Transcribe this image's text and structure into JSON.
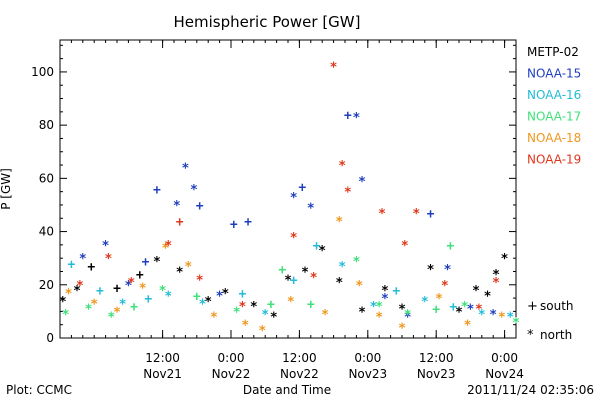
{
  "chart_data": {
    "type": "scatter",
    "title": "Hemispheric Power [GW]",
    "xlabel": "Date and Time",
    "ylabel": "P [GW]",
    "footer_left": "Plot: CCMC",
    "footer_right": "2011/11/24 02:35:06",
    "xlim": [
      "2011-11-20 18:00",
      "2011-11-24 02:00"
    ],
    "ylim": [
      0,
      112
    ],
    "y_ticks": [
      0,
      20,
      40,
      60,
      80,
      100
    ],
    "y_tick_labels": [
      "0",
      "20",
      "40",
      "60",
      "80",
      "100"
    ],
    "x_ticks": [
      "2011-11-21 12:00",
      "2011-11-22 00:00",
      "2011-11-22 12:00",
      "2011-11-23 00:00",
      "2011-11-23 12:00",
      "2011-11-24 00:00"
    ],
    "x_tick_labels": [
      {
        "time": "12:00",
        "date": "Nov21"
      },
      {
        "time": "0:00",
        "date": "Nov22"
      },
      {
        "time": "12:00",
        "date": "Nov22"
      },
      {
        "time": "0:00",
        "date": "Nov23"
      },
      {
        "time": "12:00",
        "date": "Nov23"
      },
      {
        "time": "0:00",
        "date": "Nov24"
      }
    ],
    "legend_position": "right",
    "marker_key": [
      {
        "symbol": "+",
        "label": "south"
      },
      {
        "symbol": "*",
        "label": "north"
      }
    ],
    "series": [
      {
        "name": "METP-02",
        "color": "#000000",
        "points": [
          {
            "x": "2011-11-20 18:30",
            "y": 14,
            "m": "*"
          },
          {
            "x": "2011-11-20 21:00",
            "y": 18,
            "m": "*"
          },
          {
            "x": "2011-11-20 23:30",
            "y": 27,
            "m": "+"
          },
          {
            "x": "2011-11-21 04:00",
            "y": 19,
            "m": "+"
          },
          {
            "x": "2011-11-21 08:00",
            "y": 24,
            "m": "+"
          },
          {
            "x": "2011-11-21 11:00",
            "y": 29,
            "m": "*"
          },
          {
            "x": "2011-11-21 15:00",
            "y": 25,
            "m": "*"
          },
          {
            "x": "2011-11-21 20:00",
            "y": 14,
            "m": "*"
          },
          {
            "x": "2011-11-21 23:00",
            "y": 17,
            "m": "*"
          },
          {
            "x": "2011-11-22 04:00",
            "y": 12,
            "m": "*"
          },
          {
            "x": "2011-11-22 07:30",
            "y": 8,
            "m": "*"
          },
          {
            "x": "2011-11-22 10:00",
            "y": 22,
            "m": "*"
          },
          {
            "x": "2011-11-22 13:00",
            "y": 25,
            "m": "*"
          },
          {
            "x": "2011-11-22 16:00",
            "y": 33,
            "m": "*"
          },
          {
            "x": "2011-11-22 19:00",
            "y": 21,
            "m": "*"
          },
          {
            "x": "2011-11-22 23:00",
            "y": 10,
            "m": "*"
          },
          {
            "x": "2011-11-23 03:00",
            "y": 18,
            "m": "*"
          },
          {
            "x": "2011-11-23 06:00",
            "y": 11,
            "m": "*"
          },
          {
            "x": "2011-11-23 11:00",
            "y": 26,
            "m": "*"
          },
          {
            "x": "2011-11-23 16:00",
            "y": 10,
            "m": "*"
          },
          {
            "x": "2011-11-23 19:00",
            "y": 18,
            "m": "*"
          },
          {
            "x": "2011-11-23 21:00",
            "y": 16,
            "m": "*"
          },
          {
            "x": "2011-11-23 22:30",
            "y": 24,
            "m": "*"
          },
          {
            "x": "2011-11-24 00:00",
            "y": 30,
            "m": "*"
          }
        ]
      },
      {
        "name": "NOAA-15",
        "color": "#1f3fbf",
        "points": [
          {
            "x": "2011-11-20 22:00",
            "y": 30,
            "m": "*"
          },
          {
            "x": "2011-11-21 02:00",
            "y": 35,
            "m": "*"
          },
          {
            "x": "2011-11-21 06:00",
            "y": 20,
            "m": "*"
          },
          {
            "x": "2011-11-21 09:00",
            "y": 29,
            "m": "+"
          },
          {
            "x": "2011-11-21 11:00",
            "y": 56,
            "m": "+"
          },
          {
            "x": "2011-11-21 14:30",
            "y": 50,
            "m": "*"
          },
          {
            "x": "2011-11-21 16:00",
            "y": 64,
            "m": "*"
          },
          {
            "x": "2011-11-21 17:30",
            "y": 56,
            "m": "*"
          },
          {
            "x": "2011-11-21 18:30",
            "y": 50,
            "m": "+"
          },
          {
            "x": "2011-11-21 22:00",
            "y": 16,
            "m": "*"
          },
          {
            "x": "2011-11-22 00:30",
            "y": 43,
            "m": "+"
          },
          {
            "x": "2011-11-22 03:00",
            "y": 44,
            "m": "+"
          },
          {
            "x": "2011-11-22 11:00",
            "y": 53,
            "m": "*"
          },
          {
            "x": "2011-11-22 12:30",
            "y": 57,
            "m": "+"
          },
          {
            "x": "2011-11-22 14:00",
            "y": 49,
            "m": "*"
          },
          {
            "x": "2011-11-22 20:30",
            "y": 84,
            "m": "+"
          },
          {
            "x": "2011-11-22 22:00",
            "y": 83,
            "m": "*"
          },
          {
            "x": "2011-11-22 23:00",
            "y": 59,
            "m": "*"
          },
          {
            "x": "2011-11-23 03:00",
            "y": 15,
            "m": "*"
          },
          {
            "x": "2011-11-23 07:00",
            "y": 8,
            "m": "*"
          },
          {
            "x": "2011-11-23 11:00",
            "y": 47,
            "m": "+"
          },
          {
            "x": "2011-11-23 14:00",
            "y": 26,
            "m": "*"
          },
          {
            "x": "2011-11-23 18:00",
            "y": 11,
            "m": "*"
          },
          {
            "x": "2011-11-23 22:00",
            "y": 9,
            "m": "*"
          }
        ]
      },
      {
        "name": "NOAA-16",
        "color": "#22bcd8",
        "points": [
          {
            "x": "2011-11-20 20:00",
            "y": 28,
            "m": "+"
          },
          {
            "x": "2011-11-21 01:00",
            "y": 18,
            "m": "+"
          },
          {
            "x": "2011-11-21 05:00",
            "y": 13,
            "m": "*"
          },
          {
            "x": "2011-11-21 09:30",
            "y": 15,
            "m": "+"
          },
          {
            "x": "2011-11-21 13:00",
            "y": 16,
            "m": "*"
          },
          {
            "x": "2011-11-21 19:00",
            "y": 13,
            "m": "*"
          },
          {
            "x": "2011-11-22 02:00",
            "y": 17,
            "m": "+"
          },
          {
            "x": "2011-11-22 06:00",
            "y": 9,
            "m": "*"
          },
          {
            "x": "2011-11-22 11:00",
            "y": 22,
            "m": "+"
          },
          {
            "x": "2011-11-22 15:00",
            "y": 35,
            "m": "+"
          },
          {
            "x": "2011-11-22 19:30",
            "y": 27,
            "m": "*"
          },
          {
            "x": "2011-11-23 01:00",
            "y": 12,
            "m": "*"
          },
          {
            "x": "2011-11-23 05:00",
            "y": 18,
            "m": "+"
          },
          {
            "x": "2011-11-23 10:00",
            "y": 14,
            "m": "*"
          },
          {
            "x": "2011-11-23 15:00",
            "y": 12,
            "m": "+"
          },
          {
            "x": "2011-11-23 20:00",
            "y": 9,
            "m": "*"
          },
          {
            "x": "2011-11-24 01:00",
            "y": 8,
            "m": "*"
          }
        ]
      },
      {
        "name": "NOAA-17",
        "color": "#3fe07a",
        "points": [
          {
            "x": "2011-11-20 19:00",
            "y": 9,
            "m": "*"
          },
          {
            "x": "2011-11-20 23:00",
            "y": 11,
            "m": "*"
          },
          {
            "x": "2011-11-21 03:00",
            "y": 8,
            "m": "*"
          },
          {
            "x": "2011-11-21 07:00",
            "y": 12,
            "m": "+"
          },
          {
            "x": "2011-11-21 12:00",
            "y": 18,
            "m": "*"
          },
          {
            "x": "2011-11-21 18:00",
            "y": 16,
            "m": "+"
          },
          {
            "x": "2011-11-22 01:00",
            "y": 10,
            "m": "*"
          },
          {
            "x": "2011-11-22 07:00",
            "y": 13,
            "m": "+"
          },
          {
            "x": "2011-11-22 09:00",
            "y": 26,
            "m": "+"
          },
          {
            "x": "2011-11-22 14:00",
            "y": 13,
            "m": "+"
          },
          {
            "x": "2011-11-22 22:00",
            "y": 29,
            "m": "*"
          },
          {
            "x": "2011-11-23 02:00",
            "y": 12,
            "m": "*"
          },
          {
            "x": "2011-11-23 07:00",
            "y": 9,
            "m": "*"
          },
          {
            "x": "2011-11-23 12:00",
            "y": 11,
            "m": "+"
          },
          {
            "x": "2011-11-23 14:30",
            "y": 35,
            "m": "+"
          },
          {
            "x": "2011-11-23 17:00",
            "y": 12,
            "m": "*"
          },
          {
            "x": "2011-11-24 02:00",
            "y": 6,
            "m": "*"
          }
        ]
      },
      {
        "name": "NOAA-18",
        "color": "#f0961e",
        "points": [
          {
            "x": "2011-11-20 19:30",
            "y": 17,
            "m": "*"
          },
          {
            "x": "2011-11-21 00:00",
            "y": 13,
            "m": "*"
          },
          {
            "x": "2011-11-21 04:00",
            "y": 10,
            "m": "*"
          },
          {
            "x": "2011-11-21 08:30",
            "y": 19,
            "m": "*"
          },
          {
            "x": "2011-11-21 12:30",
            "y": 34,
            "m": "*"
          },
          {
            "x": "2011-11-21 16:30",
            "y": 27,
            "m": "*"
          },
          {
            "x": "2011-11-21 21:00",
            "y": 8,
            "m": "*"
          },
          {
            "x": "2011-11-22 02:30",
            "y": 5,
            "m": "*"
          },
          {
            "x": "2011-11-22 05:30",
            "y": 3,
            "m": "*"
          },
          {
            "x": "2011-11-22 10:30",
            "y": 14,
            "m": "*"
          },
          {
            "x": "2011-11-22 16:30",
            "y": 9,
            "m": "*"
          },
          {
            "x": "2011-11-22 19:00",
            "y": 44,
            "m": "*"
          },
          {
            "x": "2011-11-22 22:30",
            "y": 20,
            "m": "*"
          },
          {
            "x": "2011-11-23 02:00",
            "y": 8,
            "m": "*"
          },
          {
            "x": "2011-11-23 06:00",
            "y": 4,
            "m": "*"
          },
          {
            "x": "2011-11-23 12:30",
            "y": 15,
            "m": "*"
          },
          {
            "x": "2011-11-23 17:30",
            "y": 5,
            "m": "*"
          },
          {
            "x": "2011-11-23 23:30",
            "y": 8,
            "m": "*"
          }
        ]
      },
      {
        "name": "NOAA-19",
        "color": "#e0371c",
        "points": [
          {
            "x": "2011-11-20 21:30",
            "y": 20,
            "m": "*"
          },
          {
            "x": "2011-11-21 02:30",
            "y": 30,
            "m": "*"
          },
          {
            "x": "2011-11-21 06:30",
            "y": 21,
            "m": "*"
          },
          {
            "x": "2011-11-21 13:00",
            "y": 35,
            "m": "*"
          },
          {
            "x": "2011-11-21 15:00",
            "y": 44,
            "m": "+"
          },
          {
            "x": "2011-11-21 18:30",
            "y": 22,
            "m": "*"
          },
          {
            "x": "2011-11-22 02:00",
            "y": 12,
            "m": "*"
          },
          {
            "x": "2011-11-22 11:00",
            "y": 38,
            "m": "*"
          },
          {
            "x": "2011-11-22 14:30",
            "y": 23,
            "m": "*"
          },
          {
            "x": "2011-11-22 18:00",
            "y": 102,
            "m": "*"
          },
          {
            "x": "2011-11-22 19:30",
            "y": 65,
            "m": "*"
          },
          {
            "x": "2011-11-22 20:30",
            "y": 55,
            "m": "*"
          },
          {
            "x": "2011-11-23 02:30",
            "y": 47,
            "m": "*"
          },
          {
            "x": "2011-11-23 06:30",
            "y": 35,
            "m": "*"
          },
          {
            "x": "2011-11-23 08:30",
            "y": 47,
            "m": "*"
          },
          {
            "x": "2011-11-23 13:30",
            "y": 20,
            "m": "*"
          },
          {
            "x": "2011-11-23 19:30",
            "y": 11,
            "m": "*"
          },
          {
            "x": "2011-11-23 22:30",
            "y": 21,
            "m": "*"
          }
        ]
      }
    ]
  }
}
